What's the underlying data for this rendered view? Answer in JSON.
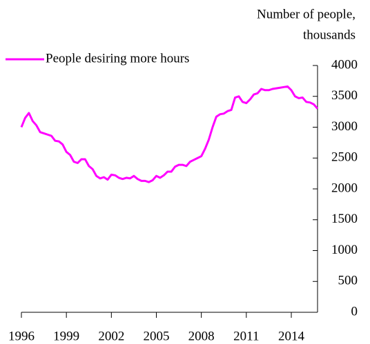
{
  "chart_data": {
    "type": "line",
    "y_label_lines": [
      "Number of people,",
      "thousands"
    ],
    "x": [
      1996,
      1996.25,
      1996.5,
      1996.75,
      1997,
      1997.25,
      1997.5,
      1997.75,
      1998,
      1998.25,
      1998.5,
      1998.75,
      1999,
      1999.25,
      1999.5,
      1999.75,
      2000,
      2000.25,
      2000.5,
      2000.75,
      2001,
      2001.25,
      2001.5,
      2001.75,
      2002,
      2002.25,
      2002.5,
      2002.75,
      2003,
      2003.25,
      2003.5,
      2003.75,
      2004,
      2004.25,
      2004.5,
      2004.75,
      2005,
      2005.25,
      2005.5,
      2005.75,
      2006,
      2006.25,
      2006.5,
      2006.75,
      2007,
      2007.25,
      2007.5,
      2007.75,
      2008,
      2008.25,
      2008.5,
      2008.75,
      2009,
      2009.25,
      2009.5,
      2009.75,
      2010,
      2010.25,
      2010.5,
      2010.75,
      2011,
      2011.25,
      2011.5,
      2011.75,
      2012,
      2012.25,
      2012.5,
      2012.75,
      2013,
      2013.25,
      2013.5,
      2013.75,
      2014,
      2014.25,
      2014.5,
      2014.75,
      2015,
      2015.25,
      2015.5,
      2015.75
    ],
    "series": [
      {
        "name": "People desiring more hours",
        "color": "#ff00ff",
        "values": [
          3000,
          3150,
          3230,
          3100,
          3030,
          2920,
          2900,
          2880,
          2860,
          2780,
          2770,
          2720,
          2600,
          2550,
          2440,
          2420,
          2480,
          2480,
          2370,
          2320,
          2210,
          2170,
          2190,
          2150,
          2230,
          2220,
          2180,
          2160,
          2180,
          2170,
          2210,
          2160,
          2130,
          2130,
          2110,
          2140,
          2210,
          2180,
          2220,
          2280,
          2280,
          2360,
          2390,
          2390,
          2370,
          2440,
          2470,
          2500,
          2530,
          2650,
          2800,
          3000,
          3170,
          3210,
          3220,
          3260,
          3280,
          3480,
          3500,
          3410,
          3390,
          3450,
          3530,
          3550,
          3620,
          3600,
          3600,
          3620,
          3630,
          3640,
          3650,
          3660,
          3600,
          3500,
          3470,
          3480,
          3410,
          3400,
          3370,
          3300
        ]
      }
    ],
    "xlim": [
      1996,
      2015.75
    ],
    "xticks": [
      1996,
      1999,
      2002,
      2005,
      2008,
      2011,
      2014
    ],
    "ylim": [
      0,
      4000
    ],
    "yticks": [
      0,
      500,
      1000,
      1500,
      2000,
      2500,
      3000,
      3500,
      4000
    ],
    "y_axis_side": "right",
    "legend": "top-left"
  }
}
